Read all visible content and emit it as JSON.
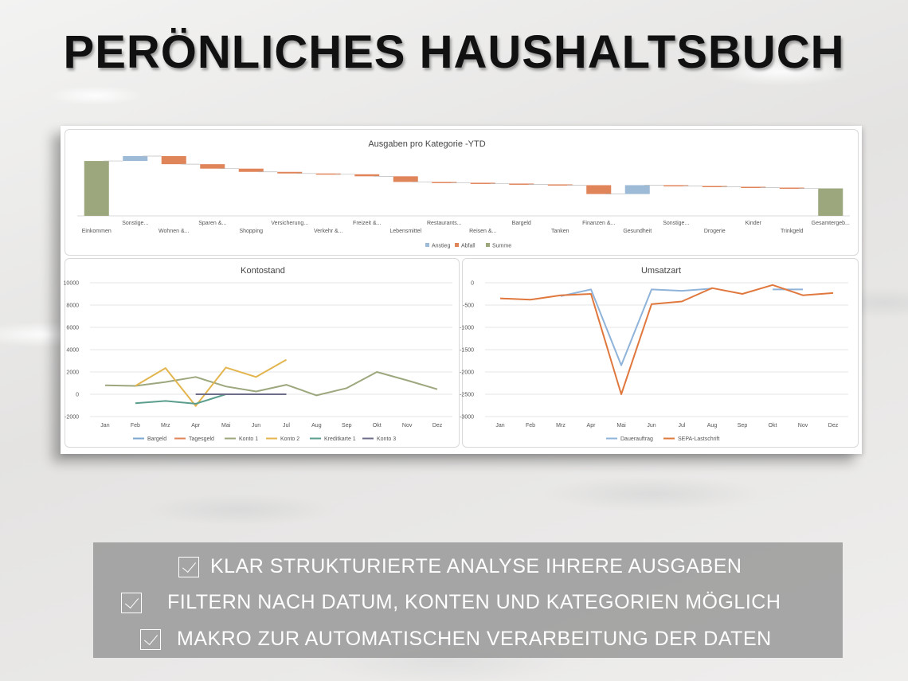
{
  "page_title": "PERÖNLICHES HAUSHALTSBUCH",
  "features": [
    {
      "text": "KLAR STRUKTURIERTE ANALYSE IHRERE AUSGABEN"
    },
    {
      "text": "FILTERN NACH DATUM, KONTEN UND KATEGORIEN MÖGLICH"
    },
    {
      "text": "MAKRO ZUR AUTOMATISCHEN VERARBEITUNG DER DATEN"
    }
  ],
  "chart_data": [
    {
      "type": "waterfall",
      "title": "Ausgaben pro Kategorie -YTD",
      "categories": [
        "Einkommen",
        "Sonstige...",
        "Wohnen &...",
        "Sparen &...",
        "Shopping",
        "Versicherung...",
        "Verkehr &...",
        "Freizeit &...",
        "Lebensmittel",
        "Restaurants...",
        "Reisen &...",
        "Bargeld",
        "Tanken",
        "Finanzen &...",
        "Gesundheit",
        "Sonstige...",
        "Drogerie",
        "Kinder",
        "Trinkgeld",
        "Gesamtergeb..."
      ],
      "values": [
        6800,
        600,
        -1000,
        -550,
        -400,
        -200,
        -100,
        -250,
        -700,
        -100,
        -100,
        -100,
        -100,
        -1100,
        1100,
        -100,
        -100,
        -100,
        -100,
        3400
      ],
      "kinds": [
        "sum",
        "up",
        "down",
        "down",
        "down",
        "down",
        "down",
        "down",
        "down",
        "down",
        "down",
        "down",
        "down",
        "down",
        "up",
        "down",
        "down",
        "down",
        "down",
        "sum"
      ],
      "legend": [
        "Anstieg",
        "Abfall",
        "Summe"
      ],
      "colors": {
        "Anstieg": "#9dbad6",
        "Abfall": "#e0845a",
        "Summe": "#9ca77d"
      },
      "legend_position": "bottom"
    },
    {
      "type": "line",
      "title": "Kontostand",
      "categories": [
        "Jan",
        "Feb",
        "Mrz",
        "Apr",
        "Mai",
        "Jun",
        "Jul",
        "Aug",
        "Sep",
        "Okt",
        "Nov",
        "Dez"
      ],
      "ylim": [
        -2000,
        10000
      ],
      "yticks": [
        10000,
        8000,
        6000,
        4000,
        2000,
        0,
        -2000
      ],
      "series": [
        {
          "name": "Bargeld",
          "color": "#7aa6cf",
          "values": [
            null,
            null,
            null,
            null,
            null,
            null,
            null,
            null,
            null,
            null,
            null,
            null
          ]
        },
        {
          "name": "Tagesgeld",
          "color": "#e0845a",
          "values": [
            null,
            null,
            null,
            null,
            null,
            null,
            null,
            null,
            null,
            null,
            null,
            null
          ]
        },
        {
          "name": "Konto 1",
          "color": "#9ca77d",
          "values": [
            800,
            750,
            1100,
            1550,
            700,
            250,
            850,
            -100,
            550,
            2000,
            1250,
            450
          ]
        },
        {
          "name": "Konto 2",
          "color": "#e3b54f",
          "values": [
            null,
            750,
            2350,
            -1050,
            2400,
            1550,
            3100,
            null,
            null,
            null,
            null,
            null
          ]
        },
        {
          "name": "Kreditkarte 1",
          "color": "#5b9e8e",
          "values": [
            null,
            -800,
            -600,
            -850,
            0,
            null,
            null,
            null,
            null,
            null,
            null,
            null
          ]
        },
        {
          "name": "Konto 3",
          "color": "#6d6d8a",
          "values": [
            null,
            null,
            null,
            0,
            0,
            0,
            0,
            null,
            null,
            null,
            null,
            null
          ]
        }
      ],
      "grid": true,
      "legend_position": "bottom"
    },
    {
      "type": "line",
      "title": "Umsatzart",
      "categories": [
        "Jan",
        "Feb",
        "Mrz",
        "Apr",
        "Mai",
        "Jun",
        "Jul",
        "Aug",
        "Sep",
        "Okt",
        "Nov",
        "Dez"
      ],
      "ylim": [
        -3000,
        0
      ],
      "yticks": [
        0,
        -500,
        -1000,
        -1500,
        -2000,
        -2500,
        -3000
      ],
      "series": [
        {
          "name": "Dauerauftrag",
          "color": "#8fb3d9",
          "values": [
            null,
            null,
            -300,
            -150,
            -1850,
            -150,
            -180,
            -130,
            null,
            -150,
            -150,
            null
          ]
        },
        {
          "name": "SEPA-Lastschrift",
          "color": "#e0783e",
          "values": [
            -350,
            -380,
            -280,
            -250,
            -2500,
            -480,
            -420,
            -120,
            -250,
            -50,
            -280,
            -230
          ]
        }
      ],
      "grid": true,
      "legend_position": "bottom"
    }
  ]
}
